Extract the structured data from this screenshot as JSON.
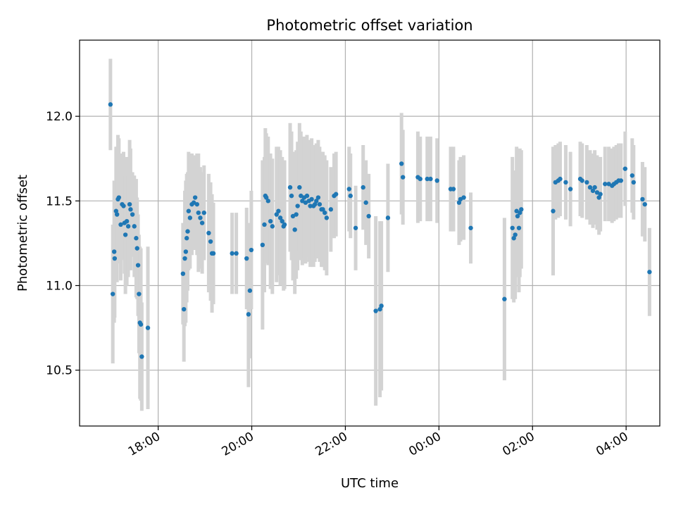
{
  "chart_data": {
    "type": "scatter",
    "title": "Photometric offset variation",
    "xlabel": "UTC time",
    "ylabel": "Photometric offset",
    "x_unit": "hours since 00:00 of the first day (continuing past 24)",
    "xlim": [
      16.32,
      28.72
    ],
    "ylim": [
      10.17,
      12.45
    ],
    "x_ticks": [
      {
        "value": 18,
        "label": "18:00"
      },
      {
        "value": 20,
        "label": "20:00"
      },
      {
        "value": 22,
        "label": "22:00"
      },
      {
        "value": 24,
        "label": "00:00"
      },
      {
        "value": 26,
        "label": "02:00"
      },
      {
        "value": 28,
        "label": "04:00"
      }
    ],
    "y_ticks": [
      {
        "value": 10.5,
        "label": "10.5"
      },
      {
        "value": 11.0,
        "label": "11.0"
      },
      {
        "value": 11.5,
        "label": "11.5"
      },
      {
        "value": 12.0,
        "label": "12.0"
      }
    ],
    "grid": true,
    "colors": {
      "marker": "#1f77b4",
      "errorbar": "#d3d3d3",
      "grid": "#b0b0b0"
    },
    "series": [
      {
        "name": "",
        "points": [
          [
            16.98,
            12.07,
            0.27
          ],
          [
            17.03,
            10.95,
            0.41
          ],
          [
            17.06,
            11.2,
            0.42
          ],
          [
            17.07,
            11.16,
            0.35
          ],
          [
            17.1,
            11.44,
            0.38
          ],
          [
            17.12,
            11.42,
            0.4
          ],
          [
            17.14,
            11.51,
            0.38
          ],
          [
            17.16,
            11.52,
            0.35
          ],
          [
            17.2,
            11.36,
            0.33
          ],
          [
            17.23,
            11.48,
            0.3
          ],
          [
            17.26,
            11.47,
            0.32
          ],
          [
            17.28,
            11.37,
            0.3
          ],
          [
            17.3,
            11.3,
            0.35
          ],
          [
            17.33,
            11.38,
            0.38
          ],
          [
            17.36,
            11.35,
            0.3
          ],
          [
            17.39,
            11.48,
            0.38
          ],
          [
            17.41,
            11.45,
            0.36
          ],
          [
            17.45,
            11.42,
            0.25
          ],
          [
            17.49,
            11.35,
            0.3
          ],
          [
            17.53,
            11.28,
            0.35
          ],
          [
            17.55,
            11.22,
            0.3
          ],
          [
            17.57,
            11.12,
            0.3
          ],
          [
            17.59,
            10.95,
            0.35
          ],
          [
            17.61,
            10.78,
            0.45
          ],
          [
            17.63,
            10.77,
            0.45
          ],
          [
            17.65,
            10.58,
            0.32
          ],
          [
            17.78,
            10.75,
            0.48
          ],
          [
            18.53,
            11.07,
            0.3
          ],
          [
            18.55,
            10.86,
            0.31
          ],
          [
            18.57,
            11.16,
            0.4
          ],
          [
            18.59,
            11.2,
            0.42
          ],
          [
            18.61,
            11.28,
            0.38
          ],
          [
            18.63,
            11.32,
            0.35
          ],
          [
            18.65,
            11.44,
            0.35
          ],
          [
            18.68,
            11.4,
            0.3
          ],
          [
            18.72,
            11.48,
            0.3
          ],
          [
            18.76,
            11.49,
            0.28
          ],
          [
            18.79,
            11.52,
            0.25
          ],
          [
            18.83,
            11.48,
            0.3
          ],
          [
            18.86,
            11.43,
            0.35
          ],
          [
            18.9,
            11.4,
            0.3
          ],
          [
            18.94,
            11.37,
            0.3
          ],
          [
            18.98,
            11.43,
            0.28
          ],
          [
            19.08,
            11.31,
            0.35
          ],
          [
            19.12,
            11.26,
            0.35
          ],
          [
            19.15,
            11.19,
            0.35
          ],
          [
            19.18,
            11.19,
            0.3
          ],
          [
            19.58,
            11.19,
            0.24
          ],
          [
            19.67,
            11.19,
            0.24
          ],
          [
            19.89,
            11.16,
            0.3
          ],
          [
            19.93,
            10.83,
            0.43
          ],
          [
            19.96,
            10.97,
            0.4
          ],
          [
            19.99,
            11.21,
            0.35
          ],
          [
            20.23,
            11.24,
            0.5
          ],
          [
            20.27,
            11.36,
            0.4
          ],
          [
            20.29,
            11.53,
            0.4
          ],
          [
            20.31,
            11.52,
            0.38
          ],
          [
            20.35,
            11.5,
            0.38
          ],
          [
            20.4,
            11.38,
            0.4
          ],
          [
            20.44,
            11.35,
            0.4
          ],
          [
            20.53,
            11.42,
            0.4
          ],
          [
            20.57,
            11.44,
            0.38
          ],
          [
            20.61,
            11.4,
            0.4
          ],
          [
            20.65,
            11.38,
            0.38
          ],
          [
            20.68,
            11.35,
            0.38
          ],
          [
            20.7,
            11.36,
            0.38
          ],
          [
            20.82,
            11.58,
            0.38
          ],
          [
            20.85,
            11.53,
            0.38
          ],
          [
            20.88,
            11.41,
            0.38
          ],
          [
            20.92,
            11.33,
            0.38
          ],
          [
            20.95,
            11.42,
            0.38
          ],
          [
            20.98,
            11.47,
            0.38
          ],
          [
            21.02,
            11.58,
            0.38
          ],
          [
            21.05,
            11.53,
            0.38
          ],
          [
            21.08,
            11.5,
            0.38
          ],
          [
            21.12,
            11.52,
            0.36
          ],
          [
            21.15,
            11.49,
            0.36
          ],
          [
            21.18,
            11.53,
            0.36
          ],
          [
            21.22,
            11.5,
            0.36
          ],
          [
            21.25,
            11.47,
            0.36
          ],
          [
            21.28,
            11.51,
            0.36
          ],
          [
            21.32,
            11.47,
            0.36
          ],
          [
            21.35,
            11.48,
            0.34
          ],
          [
            21.38,
            11.5,
            0.34
          ],
          [
            21.42,
            11.52,
            0.34
          ],
          [
            21.45,
            11.48,
            0.34
          ],
          [
            21.49,
            11.45,
            0.34
          ],
          [
            21.52,
            11.45,
            0.34
          ],
          [
            21.56,
            11.43,
            0.34
          ],
          [
            21.6,
            11.4,
            0.34
          ],
          [
            21.69,
            11.45,
            0.25
          ],
          [
            21.76,
            11.53,
            0.25
          ],
          [
            21.8,
            11.54,
            0.25
          ],
          [
            22.08,
            11.57,
            0.25
          ],
          [
            22.11,
            11.53,
            0.25
          ],
          [
            22.22,
            11.34,
            0.25
          ],
          [
            22.38,
            11.58,
            0.25
          ],
          [
            22.44,
            11.49,
            0.25
          ],
          [
            22.5,
            11.41,
            0.25
          ],
          [
            22.65,
            10.85,
            0.56
          ],
          [
            22.74,
            10.86,
            0.52
          ],
          [
            22.77,
            10.88,
            0.5
          ],
          [
            22.91,
            11.4,
            0.32
          ],
          [
            23.2,
            11.72,
            0.3
          ],
          [
            23.23,
            11.64,
            0.28
          ],
          [
            23.55,
            11.64,
            0.27
          ],
          [
            23.6,
            11.63,
            0.25
          ],
          [
            23.75,
            11.63,
            0.25
          ],
          [
            23.82,
            11.63,
            0.25
          ],
          [
            23.96,
            11.62,
            0.25
          ],
          [
            24.25,
            11.57,
            0.25
          ],
          [
            24.31,
            11.57,
            0.25
          ],
          [
            24.43,
            11.49,
            0.25
          ],
          [
            24.46,
            11.51,
            0.25
          ],
          [
            24.53,
            11.52,
            0.25
          ],
          [
            24.68,
            11.34,
            0.21
          ],
          [
            25.4,
            10.92,
            0.48
          ],
          [
            25.57,
            11.34,
            0.42
          ],
          [
            25.6,
            11.28,
            0.38
          ],
          [
            25.63,
            11.3,
            0.38
          ],
          [
            25.66,
            11.44,
            0.38
          ],
          [
            25.68,
            11.41,
            0.36
          ],
          [
            25.71,
            11.34,
            0.38
          ],
          [
            25.73,
            11.43,
            0.38
          ],
          [
            25.76,
            11.45,
            0.35
          ],
          [
            26.44,
            11.44,
            0.38
          ],
          [
            26.49,
            11.61,
            0.22
          ],
          [
            26.55,
            11.62,
            0.22
          ],
          [
            26.59,
            11.63,
            0.22
          ],
          [
            26.71,
            11.61,
            0.22
          ],
          [
            26.81,
            11.57,
            0.22
          ],
          [
            27.02,
            11.63,
            0.22
          ],
          [
            27.06,
            11.62,
            0.22
          ],
          [
            27.16,
            11.61,
            0.22
          ],
          [
            27.23,
            11.58,
            0.22
          ],
          [
            27.29,
            11.56,
            0.22
          ],
          [
            27.33,
            11.58,
            0.22
          ],
          [
            27.38,
            11.55,
            0.22
          ],
          [
            27.42,
            11.52,
            0.22
          ],
          [
            27.45,
            11.54,
            0.22
          ],
          [
            27.55,
            11.6,
            0.22
          ],
          [
            27.63,
            11.6,
            0.22
          ],
          [
            27.7,
            11.59,
            0.22
          ],
          [
            27.74,
            11.6,
            0.22
          ],
          [
            27.79,
            11.61,
            0.22
          ],
          [
            27.84,
            11.62,
            0.22
          ],
          [
            27.89,
            11.62,
            0.22
          ],
          [
            27.98,
            11.69,
            0.22
          ],
          [
            28.13,
            11.65,
            0.22
          ],
          [
            28.16,
            11.61,
            0.22
          ],
          [
            28.35,
            11.51,
            0.22
          ],
          [
            28.4,
            11.48,
            0.22
          ],
          [
            28.5,
            11.08,
            0.26
          ]
        ]
      }
    ]
  }
}
